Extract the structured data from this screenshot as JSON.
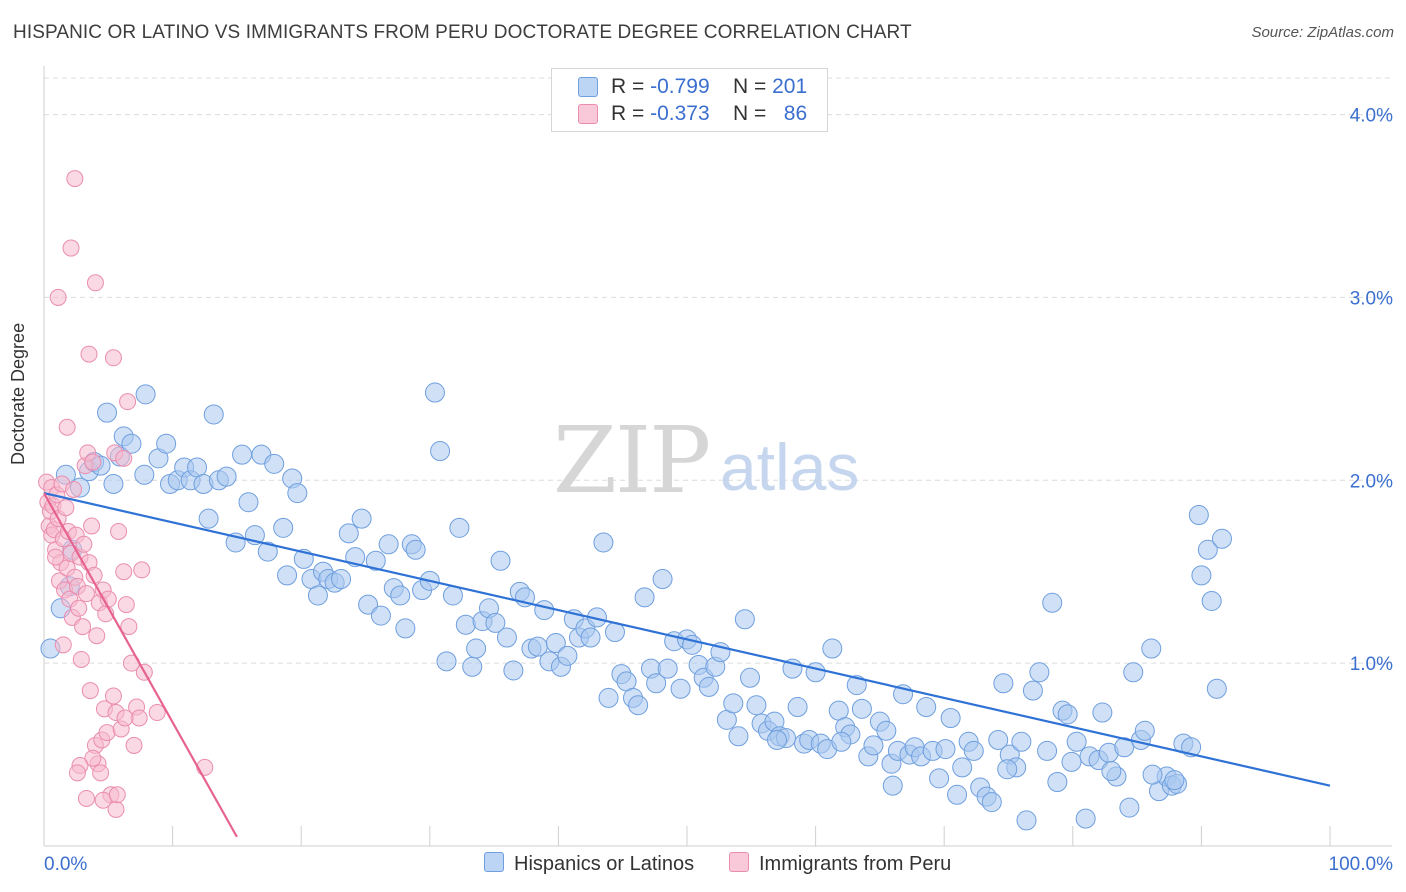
{
  "header": {
    "title": "HISPANIC OR LATINO VS IMMIGRANTS FROM PERU DOCTORATE DEGREE CORRELATION CHART",
    "source": "Source: ZipAtlas.com"
  },
  "legend": {
    "rows": [
      {
        "r_label": "R =",
        "r_value": "-0.799",
        "n_label": "N =",
        "n_value": "201"
      },
      {
        "r_label": "R =",
        "r_value": "-0.373",
        "n_label": "N =",
        "n_value": "86"
      }
    ]
  },
  "bottom_legend": {
    "series_a": "Hispanics or Latinos",
    "series_b": "Immigrants from Peru"
  },
  "watermark": {
    "zip": "ZIP",
    "atlas": "atlas"
  },
  "colors": {
    "blue_fill": "#a9c8f0",
    "blue_stroke": "#6f9fde",
    "blue_line": "#2f72d6",
    "pink_fill": "#f6b9cd",
    "pink_stroke": "#ea8dae",
    "pink_line": "#e6628f",
    "tick_text": "#3b6fcf",
    "grid": "#dcdcdc"
  },
  "chart_data": {
    "type": "scatter",
    "title": "HISPANIC OR LATINO VS IMMIGRANTS FROM PERU DOCTORATE DEGREE CORRELATION CHART",
    "xlabel": "",
    "ylabel": "Doctorate Degree",
    "xlim": [
      0,
      100
    ],
    "ylim": [
      0,
      4.2
    ],
    "x_tick_labels": [
      "0.0%",
      "100.0%"
    ],
    "y_ticks": [
      1.0,
      2.0,
      3.0,
      4.0
    ],
    "y_tick_labels": [
      "1.0%",
      "2.0%",
      "3.0%",
      "4.0%"
    ],
    "grid": true,
    "legend_position": "top-center",
    "series": [
      {
        "name": "Hispanics or Latinos",
        "r": -0.799,
        "n": 201,
        "trend": {
          "x": [
            0,
            100
          ],
          "y": [
            1.93,
            0.33
          ]
        },
        "points": [
          [
            0.5,
            1.08
          ],
          [
            1.3,
            1.3
          ],
          [
            1.7,
            2.03
          ],
          [
            2.0,
            1.42
          ],
          [
            2.2,
            1.62
          ],
          [
            2.8,
            1.96
          ],
          [
            3.5,
            2.05
          ],
          [
            3.9,
            2.1
          ],
          [
            4.4,
            2.08
          ],
          [
            4.9,
            2.37
          ],
          [
            5.4,
            1.98
          ],
          [
            5.9,
            2.13
          ],
          [
            6.2,
            2.24
          ],
          [
            6.8,
            2.2
          ],
          [
            7.9,
            2.47
          ],
          [
            7.8,
            2.03
          ],
          [
            8.9,
            2.12
          ],
          [
            9.5,
            2.2
          ],
          [
            9.8,
            1.98
          ],
          [
            10.4,
            2.0
          ],
          [
            10.9,
            2.07
          ],
          [
            11.4,
            2.0
          ],
          [
            11.9,
            2.07
          ],
          [
            12.4,
            1.98
          ],
          [
            12.8,
            1.79
          ],
          [
            13.2,
            2.36
          ],
          [
            13.6,
            2.0
          ],
          [
            14.2,
            2.02
          ],
          [
            14.9,
            1.66
          ],
          [
            15.4,
            2.14
          ],
          [
            15.9,
            1.88
          ],
          [
            16.4,
            1.7
          ],
          [
            16.9,
            2.14
          ],
          [
            17.4,
            1.61
          ],
          [
            17.9,
            2.09
          ],
          [
            18.6,
            1.74
          ],
          [
            18.9,
            1.48
          ],
          [
            19.3,
            2.01
          ],
          [
            19.7,
            1.93
          ],
          [
            20.2,
            1.57
          ],
          [
            20.8,
            1.46
          ],
          [
            21.3,
            1.37
          ],
          [
            21.7,
            1.5
          ],
          [
            22.1,
            1.46
          ],
          [
            22.6,
            1.44
          ],
          [
            23.1,
            1.46
          ],
          [
            23.7,
            1.71
          ],
          [
            24.2,
            1.58
          ],
          [
            24.7,
            1.79
          ],
          [
            25.2,
            1.32
          ],
          [
            25.8,
            1.56
          ],
          [
            26.2,
            1.26
          ],
          [
            26.8,
            1.65
          ],
          [
            27.2,
            1.41
          ],
          [
            27.7,
            1.37
          ],
          [
            28.1,
            1.19
          ],
          [
            28.6,
            1.65
          ],
          [
            28.9,
            1.62
          ],
          [
            29.4,
            1.4
          ],
          [
            30.0,
            1.45
          ],
          [
            30.4,
            2.48
          ],
          [
            30.8,
            2.16
          ],
          [
            31.3,
            1.01
          ],
          [
            31.8,
            1.37
          ],
          [
            32.3,
            1.74
          ],
          [
            32.8,
            1.21
          ],
          [
            33.3,
            0.98
          ],
          [
            33.6,
            1.08
          ],
          [
            34.1,
            1.23
          ],
          [
            34.6,
            1.3
          ],
          [
            35.1,
            1.22
          ],
          [
            35.5,
            1.56
          ],
          [
            36.0,
            1.14
          ],
          [
            36.5,
            0.96
          ],
          [
            37.0,
            1.39
          ],
          [
            37.4,
            1.36
          ],
          [
            37.9,
            1.08
          ],
          [
            38.4,
            1.09
          ],
          [
            38.9,
            1.29
          ],
          [
            39.3,
            1.01
          ],
          [
            39.8,
            1.11
          ],
          [
            40.2,
            0.98
          ],
          [
            40.7,
            1.04
          ],
          [
            41.2,
            1.24
          ],
          [
            41.6,
            1.14
          ],
          [
            42.1,
            1.19
          ],
          [
            42.5,
            1.14
          ],
          [
            43.0,
            1.25
          ],
          [
            43.5,
            1.66
          ],
          [
            43.9,
            0.81
          ],
          [
            44.4,
            1.17
          ],
          [
            44.9,
            0.94
          ],
          [
            45.3,
            0.9
          ],
          [
            45.8,
            0.81
          ],
          [
            46.2,
            0.77
          ],
          [
            46.7,
            1.36
          ],
          [
            47.2,
            0.97
          ],
          [
            47.6,
            0.89
          ],
          [
            48.1,
            1.46
          ],
          [
            48.5,
            0.97
          ],
          [
            49.0,
            1.12
          ],
          [
            49.5,
            0.86
          ],
          [
            50.0,
            1.13
          ],
          [
            50.4,
            1.1
          ],
          [
            50.9,
            0.99
          ],
          [
            51.3,
            0.92
          ],
          [
            51.7,
            0.87
          ],
          [
            52.2,
            0.98
          ],
          [
            52.6,
            1.06
          ],
          [
            53.1,
            0.69
          ],
          [
            53.6,
            0.78
          ],
          [
            54.0,
            0.6
          ],
          [
            54.5,
            1.24
          ],
          [
            54.9,
            0.92
          ],
          [
            55.4,
            0.77
          ],
          [
            55.8,
            0.67
          ],
          [
            56.3,
            0.63
          ],
          [
            56.8,
            0.68
          ],
          [
            57.2,
            0.6
          ],
          [
            57.7,
            0.59
          ],
          [
            58.2,
            0.97
          ],
          [
            58.6,
            0.76
          ],
          [
            59.1,
            0.56
          ],
          [
            59.5,
            0.58
          ],
          [
            60.0,
            0.95
          ],
          [
            60.4,
            0.56
          ],
          [
            60.9,
            0.53
          ],
          [
            61.3,
            1.08
          ],
          [
            61.8,
            0.74
          ],
          [
            62.3,
            0.65
          ],
          [
            62.7,
            0.61
          ],
          [
            63.2,
            0.88
          ],
          [
            63.6,
            0.75
          ],
          [
            64.1,
            0.49
          ],
          [
            64.5,
            0.55
          ],
          [
            65.0,
            0.68
          ],
          [
            65.5,
            0.63
          ],
          [
            65.9,
            0.45
          ],
          [
            66.4,
            0.52
          ],
          [
            66.8,
            0.83
          ],
          [
            67.3,
            0.5
          ],
          [
            67.7,
            0.54
          ],
          [
            68.2,
            0.49
          ],
          [
            68.6,
            0.76
          ],
          [
            69.1,
            0.52
          ],
          [
            69.6,
            0.37
          ],
          [
            70.1,
            0.53
          ],
          [
            70.5,
            0.7
          ],
          [
            71.0,
            0.28
          ],
          [
            71.4,
            0.43
          ],
          [
            71.9,
            0.57
          ],
          [
            72.3,
            0.52
          ],
          [
            72.8,
            0.32
          ],
          [
            73.3,
            0.27
          ],
          [
            73.7,
            0.24
          ],
          [
            74.2,
            0.58
          ],
          [
            74.6,
            0.89
          ],
          [
            75.1,
            0.5
          ],
          [
            75.6,
            0.43
          ],
          [
            76.0,
            0.57
          ],
          [
            76.4,
            0.14
          ],
          [
            76.9,
            0.85
          ],
          [
            77.4,
            0.95
          ],
          [
            78.0,
            0.52
          ],
          [
            78.4,
            1.33
          ],
          [
            78.8,
            0.35
          ],
          [
            79.2,
            0.74
          ],
          [
            79.6,
            0.72
          ],
          [
            80.3,
            0.57
          ],
          [
            81.0,
            0.15
          ],
          [
            81.3,
            0.49
          ],
          [
            82.0,
            0.47
          ],
          [
            82.3,
            0.73
          ],
          [
            82.8,
            0.51
          ],
          [
            83.4,
            0.38
          ],
          [
            84.0,
            0.54
          ],
          [
            84.4,
            0.21
          ],
          [
            84.7,
            0.95
          ],
          [
            85.3,
            0.58
          ],
          [
            85.6,
            0.63
          ],
          [
            86.1,
            1.08
          ],
          [
            86.7,
            0.3
          ],
          [
            87.3,
            0.38
          ],
          [
            87.7,
            0.33
          ],
          [
            88.1,
            0.34
          ],
          [
            88.6,
            0.56
          ],
          [
            89.2,
            0.54
          ],
          [
            89.8,
            1.81
          ],
          [
            90.0,
            1.48
          ],
          [
            90.5,
            1.62
          ],
          [
            90.8,
            1.34
          ],
          [
            91.2,
            0.86
          ],
          [
            91.6,
            1.68
          ],
          [
            87.9,
            0.36
          ],
          [
            86.2,
            0.39
          ],
          [
            83.0,
            0.41
          ],
          [
            79.9,
            0.46
          ],
          [
            74.9,
            0.42
          ],
          [
            66.0,
            0.33
          ],
          [
            62.0,
            0.57
          ],
          [
            57.0,
            0.58
          ]
        ]
      },
      {
        "name": "Immigrants from Peru",
        "r": -0.373,
        "n": 86,
        "trend": {
          "x": [
            0,
            15
          ],
          "y": [
            1.93,
            0.05
          ]
        },
        "points": [
          [
            0.2,
            1.99
          ],
          [
            0.3,
            1.88
          ],
          [
            0.4,
            1.75
          ],
          [
            0.5,
            1.83
          ],
          [
            0.6,
            1.7
          ],
          [
            0.6,
            1.96
          ],
          [
            0.7,
            1.86
          ],
          [
            0.8,
            1.73
          ],
          [
            0.9,
            1.62
          ],
          [
            1.0,
            1.92
          ],
          [
            1.1,
            1.79
          ],
          [
            1.2,
            1.45
          ],
          [
            1.3,
            1.55
          ],
          [
            1.4,
            1.98
          ],
          [
            1.5,
            1.68
          ],
          [
            1.6,
            1.4
          ],
          [
            1.7,
            1.85
          ],
          [
            1.8,
            1.52
          ],
          [
            1.9,
            1.72
          ],
          [
            2.0,
            1.35
          ],
          [
            2.1,
            1.6
          ],
          [
            2.2,
            1.25
          ],
          [
            2.3,
            1.95
          ],
          [
            2.4,
            1.47
          ],
          [
            2.5,
            1.7
          ],
          [
            2.6,
            1.42
          ],
          [
            2.7,
            1.3
          ],
          [
            2.8,
            1.58
          ],
          [
            2.9,
            1.02
          ],
          [
            3.0,
            1.2
          ],
          [
            3.1,
            1.65
          ],
          [
            3.2,
            2.08
          ],
          [
            3.3,
            1.38
          ],
          [
            3.4,
            2.15
          ],
          [
            3.5,
            1.55
          ],
          [
            3.6,
            0.85
          ],
          [
            3.7,
            1.75
          ],
          [
            3.8,
            2.1
          ],
          [
            3.9,
            1.48
          ],
          [
            4.0,
            0.55
          ],
          [
            4.1,
            1.15
          ],
          [
            4.2,
            0.45
          ],
          [
            4.3,
            1.33
          ],
          [
            4.4,
            0.4
          ],
          [
            4.5,
            0.58
          ],
          [
            4.6,
            1.4
          ],
          [
            4.7,
            0.75
          ],
          [
            4.8,
            1.27
          ],
          [
            4.9,
            0.62
          ],
          [
            5.0,
            1.35
          ],
          [
            5.2,
            0.28
          ],
          [
            5.4,
            0.82
          ],
          [
            5.6,
            0.73
          ],
          [
            5.8,
            1.72
          ],
          [
            6.0,
            0.64
          ],
          [
            6.2,
            1.5
          ],
          [
            6.4,
            1.32
          ],
          [
            6.6,
            1.2
          ],
          [
            6.8,
            1.0
          ],
          [
            7.0,
            0.55
          ],
          [
            7.2,
            0.76
          ],
          [
            7.4,
            0.7
          ],
          [
            7.6,
            1.51
          ],
          [
            7.8,
            0.95
          ],
          [
            2.4,
            3.65
          ],
          [
            2.1,
            3.27
          ],
          [
            1.1,
            3.0
          ],
          [
            4.0,
            3.08
          ],
          [
            3.5,
            2.69
          ],
          [
            5.4,
            2.67
          ],
          [
            6.5,
            2.43
          ],
          [
            1.8,
            2.29
          ],
          [
            5.5,
            2.15
          ],
          [
            6.2,
            2.12
          ],
          [
            3.8,
            0.48
          ],
          [
            3.3,
            0.26
          ],
          [
            4.6,
            0.25
          ],
          [
            5.6,
            0.2
          ],
          [
            5.7,
            0.28
          ],
          [
            2.8,
            0.44
          ],
          [
            1.5,
            1.1
          ],
          [
            0.9,
            1.58
          ],
          [
            2.6,
            0.4
          ],
          [
            6.3,
            0.7
          ],
          [
            8.8,
            0.73
          ],
          [
            12.5,
            0.43
          ]
        ]
      }
    ]
  }
}
